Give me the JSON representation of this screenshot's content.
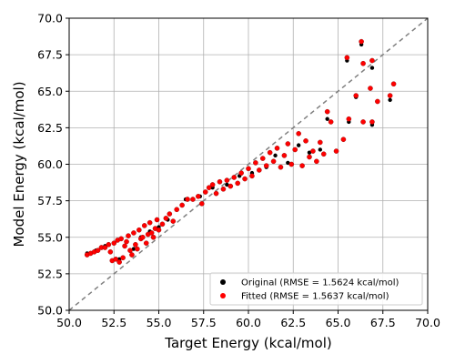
{
  "chart_data": {
    "type": "scatter",
    "title": "",
    "xlabel": "Target Energy (kcal/mol)",
    "ylabel": "Model Energy (kcal/mol)",
    "xlim": [
      50.0,
      70.0
    ],
    "ylim": [
      50.0,
      70.0
    ],
    "xticks": [
      "50.0",
      "52.5",
      "55.0",
      "57.5",
      "60.0",
      "62.5",
      "65.0",
      "67.5",
      "70.0"
    ],
    "yticks": [
      "50.0",
      "52.5",
      "55.0",
      "57.5",
      "60.0",
      "62.5",
      "65.0",
      "67.5",
      "70.0"
    ],
    "grid": true,
    "legend_position": "lower-right",
    "reference_line": {
      "from": [
        50.0,
        50.0
      ],
      "to": [
        70.0,
        70.0
      ],
      "style": "dashed",
      "color": "#808080"
    },
    "series": [
      {
        "name": "Original (RMSE = 1.5624 kcal/mol)",
        "color": "#000000",
        "points": [
          [
            51.0,
            53.9
          ],
          [
            51.5,
            54.1
          ],
          [
            52.0,
            54.4
          ],
          [
            52.5,
            54.6
          ],
          [
            52.8,
            53.5
          ],
          [
            53.2,
            54.7
          ],
          [
            53.6,
            54.2
          ],
          [
            54.0,
            55.0
          ],
          [
            54.5,
            55.4
          ],
          [
            55.0,
            55.7
          ],
          [
            55.5,
            56.2
          ],
          [
            56.5,
            57.6
          ],
          [
            57.3,
            57.8
          ],
          [
            58.0,
            58.4
          ],
          [
            58.8,
            58.6
          ],
          [
            59.5,
            59.2
          ],
          [
            60.2,
            59.4
          ],
          [
            61.0,
            59.8
          ],
          [
            61.5,
            60.6
          ],
          [
            62.2,
            60.1
          ],
          [
            62.8,
            61.3
          ],
          [
            63.4,
            60.8
          ],
          [
            64.0,
            61.0
          ],
          [
            64.4,
            63.1
          ],
          [
            65.3,
            61.7
          ],
          [
            65.5,
            67.1
          ],
          [
            65.6,
            62.9
          ],
          [
            66.0,
            64.6
          ],
          [
            66.3,
            68.2
          ],
          [
            66.4,
            66.9
          ],
          [
            66.9,
            66.6
          ],
          [
            66.9,
            62.7
          ],
          [
            67.9,
            64.4
          ],
          [
            68.1,
            65.5
          ]
        ]
      },
      {
        "name": "Fitted (RMSE = 1.5637 kcal/mol)",
        "color": "#ff0000",
        "points": [
          [
            51.0,
            53.8
          ],
          [
            51.2,
            53.9
          ],
          [
            51.4,
            54.0
          ],
          [
            51.6,
            54.1
          ],
          [
            51.8,
            54.3
          ],
          [
            52.0,
            54.3
          ],
          [
            52.2,
            54.5
          ],
          [
            52.3,
            54.0
          ],
          [
            52.4,
            53.4
          ],
          [
            52.5,
            54.6
          ],
          [
            52.6,
            53.5
          ],
          [
            52.7,
            54.8
          ],
          [
            52.8,
            53.3
          ],
          [
            52.9,
            54.9
          ],
          [
            53.0,
            53.6
          ],
          [
            53.1,
            54.4
          ],
          [
            53.2,
            54.7
          ],
          [
            53.3,
            55.1
          ],
          [
            53.4,
            54.1
          ],
          [
            53.5,
            53.8
          ],
          [
            53.6,
            55.3
          ],
          [
            53.7,
            54.5
          ],
          [
            53.8,
            54.2
          ],
          [
            53.9,
            55.5
          ],
          [
            54.0,
            54.9
          ],
          [
            54.1,
            55.0
          ],
          [
            54.2,
            55.8
          ],
          [
            54.3,
            54.6
          ],
          [
            54.4,
            55.2
          ],
          [
            54.5,
            56.0
          ],
          [
            54.6,
            55.3
          ],
          [
            54.7,
            55.0
          ],
          [
            54.8,
            55.6
          ],
          [
            54.9,
            56.2
          ],
          [
            55.0,
            55.5
          ],
          [
            55.2,
            55.9
          ],
          [
            55.4,
            56.3
          ],
          [
            55.6,
            56.6
          ],
          [
            55.8,
            56.1
          ],
          [
            56.0,
            56.9
          ],
          [
            56.3,
            57.2
          ],
          [
            56.6,
            57.6
          ],
          [
            56.9,
            57.6
          ],
          [
            57.2,
            57.8
          ],
          [
            57.4,
            57.3
          ],
          [
            57.6,
            58.1
          ],
          [
            57.8,
            58.4
          ],
          [
            58.0,
            58.6
          ],
          [
            58.2,
            58.0
          ],
          [
            58.4,
            58.8
          ],
          [
            58.6,
            58.3
          ],
          [
            58.8,
            58.9
          ],
          [
            59.0,
            58.5
          ],
          [
            59.2,
            59.1
          ],
          [
            59.4,
            58.7
          ],
          [
            59.6,
            59.4
          ],
          [
            59.8,
            59.0
          ],
          [
            60.0,
            59.7
          ],
          [
            60.2,
            59.2
          ],
          [
            60.4,
            60.1
          ],
          [
            60.6,
            59.6
          ],
          [
            60.8,
            60.4
          ],
          [
            61.0,
            59.9
          ],
          [
            61.2,
            60.8
          ],
          [
            61.4,
            60.2
          ],
          [
            61.6,
            61.1
          ],
          [
            61.8,
            59.8
          ],
          [
            62.0,
            60.6
          ],
          [
            62.2,
            61.4
          ],
          [
            62.4,
            60.0
          ],
          [
            62.6,
            61.0
          ],
          [
            62.8,
            62.1
          ],
          [
            63.0,
            59.9
          ],
          [
            63.2,
            61.6
          ],
          [
            63.4,
            60.5
          ],
          [
            63.6,
            60.9
          ],
          [
            63.8,
            60.2
          ],
          [
            64.0,
            61.5
          ],
          [
            64.2,
            60.7
          ],
          [
            64.4,
            63.6
          ],
          [
            64.6,
            62.9
          ],
          [
            64.9,
            60.9
          ],
          [
            65.3,
            61.7
          ],
          [
            65.5,
            67.3
          ],
          [
            65.6,
            63.1
          ],
          [
            66.0,
            64.7
          ],
          [
            66.3,
            68.4
          ],
          [
            66.4,
            66.9
          ],
          [
            66.4,
            62.9
          ],
          [
            66.8,
            65.2
          ],
          [
            66.9,
            67.1
          ],
          [
            66.9,
            62.9
          ],
          [
            67.2,
            64.3
          ],
          [
            67.9,
            64.7
          ],
          [
            68.1,
            65.5
          ]
        ]
      }
    ]
  }
}
